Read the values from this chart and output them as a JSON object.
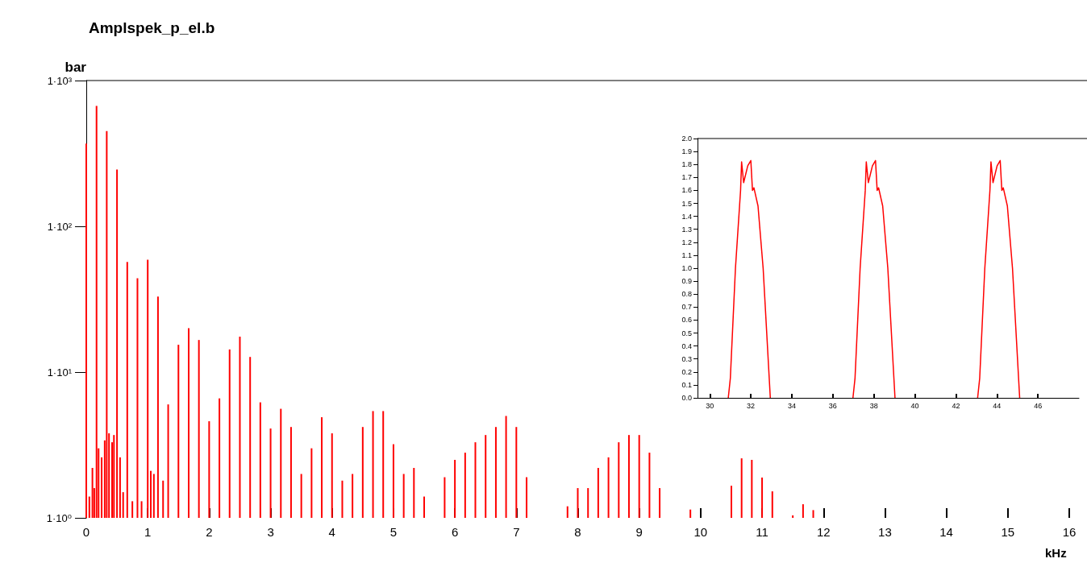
{
  "chart_data": [
    {
      "type": "bar",
      "title": "Amplspek_p_el.b",
      "ylabel": "bar",
      "xlabel": "kHz",
      "log": "y",
      "xlim": [
        0,
        16
      ],
      "xticks": [
        0,
        1,
        2,
        3,
        4,
        5,
        6,
        7,
        8,
        9,
        10,
        11,
        12,
        13,
        14,
        15,
        16
      ],
      "ylim": [
        1,
        1000
      ],
      "yticks": [
        {
          "value": 1,
          "label": "1·10⁰"
        },
        {
          "value": 10,
          "label": "1·10¹"
        },
        {
          "value": 100,
          "label": "1·10²"
        },
        {
          "value": 1000,
          "label": "1·10³"
        }
      ],
      "series": [
        {
          "color": "#ff0000",
          "x": [
            0,
            0.05,
            0.1,
            0.13,
            0.167,
            0.2,
            0.25,
            0.3,
            0.333,
            0.37,
            0.42,
            0.45,
            0.5,
            0.55,
            0.6,
            0.667,
            0.75,
            0.833,
            0.9,
            1.0,
            1.05,
            1.1,
            1.167,
            1.25,
            1.333,
            1.5,
            1.667,
            1.833,
            2.0,
            2.167,
            2.333,
            2.5,
            2.667,
            2.833,
            3.0,
            3.167,
            3.333,
            3.5,
            3.667,
            3.833,
            4.0,
            4.167,
            4.333,
            4.5,
            4.667,
            4.833,
            5.0,
            5.167,
            5.333,
            5.5,
            5.833,
            6.0,
            6.167,
            6.333,
            6.5,
            6.667,
            6.833,
            7.0,
            7.167,
            7.833,
            8.0,
            8.167,
            8.333,
            8.5,
            8.667,
            8.833,
            9.0,
            9.167,
            9.333,
            9.833,
            10.5,
            10.667,
            10.833,
            11.0,
            11.167,
            11.5,
            11.667,
            11.833
          ],
          "values": [
            370,
            1.4,
            2.2,
            1.6,
            670,
            3.0,
            2.6,
            3.4,
            450,
            3.8,
            3.3,
            3.7,
            245,
            2.6,
            1.5,
            57,
            1.3,
            44,
            1.3,
            59,
            2.1,
            2.0,
            33,
            1.8,
            6.0,
            15.4,
            20,
            16.6,
            4.6,
            6.6,
            14.3,
            17.5,
            12.7,
            6.2,
            4.1,
            5.6,
            4.2,
            2.0,
            3.0,
            4.9,
            3.8,
            1.8,
            2.0,
            4.2,
            5.4,
            5.4,
            3.2,
            2.0,
            2.2,
            1.4,
            1.9,
            2.5,
            2.8,
            3.3,
            3.7,
            4.2,
            5.0,
            4.2,
            1.9,
            1.2,
            1.6,
            1.6,
            2.2,
            2.6,
            3.3,
            3.7,
            3.7,
            2.8,
            1.6,
            1.14,
            1.66,
            2.56,
            2.5,
            1.89,
            1.52,
            1.04,
            1.24,
            1.13
          ]
        }
      ]
    },
    {
      "type": "line",
      "marker": "none",
      "xlim": [
        29.4,
        48
      ],
      "xticks": [
        30,
        32,
        34,
        36,
        38,
        40,
        42,
        44,
        46
      ],
      "ylim": [
        0,
        2
      ],
      "yticks": [
        {
          "value": 0,
          "label": "0.0"
        },
        {
          "value": 0.1,
          "label": "0.1"
        },
        {
          "value": 0.2,
          "label": "0.2"
        },
        {
          "value": 0.3,
          "label": "0.3"
        },
        {
          "value": 0.4,
          "label": "0.4"
        },
        {
          "value": 0.5,
          "label": "0.5"
        },
        {
          "value": 0.6,
          "label": "0.6"
        },
        {
          "value": 0.7,
          "label": "0.7"
        },
        {
          "value": 0.8,
          "label": "0.8"
        },
        {
          "value": 0.9,
          "label": "0.9"
        },
        {
          "value": 1,
          "label": "1.0"
        },
        {
          "value": 1.1,
          "label": "1.1"
        },
        {
          "value": 1.2,
          "label": "1.2"
        },
        {
          "value": 1.3,
          "label": "1.3"
        },
        {
          "value": 1.4,
          "label": "1.4"
        },
        {
          "value": 1.5,
          "label": "1.5"
        },
        {
          "value": 1.6,
          "label": "1.6"
        },
        {
          "value": 1.7,
          "label": "1.7"
        },
        {
          "value": 1.8,
          "label": "1.8"
        },
        {
          "value": 1.9,
          "label": "1.9"
        },
        {
          "value": 2,
          "label": "2.0"
        }
      ],
      "series": [
        {
          "color": "#ff0000",
          "x": [
            30.9,
            31.0,
            31.25,
            31.5,
            31.55,
            31.65,
            31.85,
            32.0,
            32.08,
            32.15,
            32.35,
            32.6,
            32.95,
            35.0,
            36.98,
            37.08,
            37.33,
            37.58,
            37.63,
            37.73,
            37.93,
            38.08,
            38.16,
            38.23,
            38.43,
            38.68,
            39.03,
            41.0,
            43.06,
            43.16,
            43.41,
            43.66,
            43.71,
            43.81,
            44.01,
            44.16,
            44.24,
            44.31,
            44.51,
            44.76,
            45.11
          ],
          "values": [
            0,
            0.15,
            1.0,
            1.6,
            1.82,
            1.66,
            1.79,
            1.83,
            1.6,
            1.62,
            1.48,
            1.0,
            0,
            null,
            0,
            0.15,
            1.0,
            1.6,
            1.82,
            1.66,
            1.79,
            1.83,
            1.6,
            1.62,
            1.48,
            1.0,
            0,
            null,
            0,
            0.15,
            1.0,
            1.6,
            1.82,
            1.66,
            1.79,
            1.83,
            1.6,
            1.62,
            1.48,
            1.0,
            0
          ]
        }
      ]
    }
  ]
}
